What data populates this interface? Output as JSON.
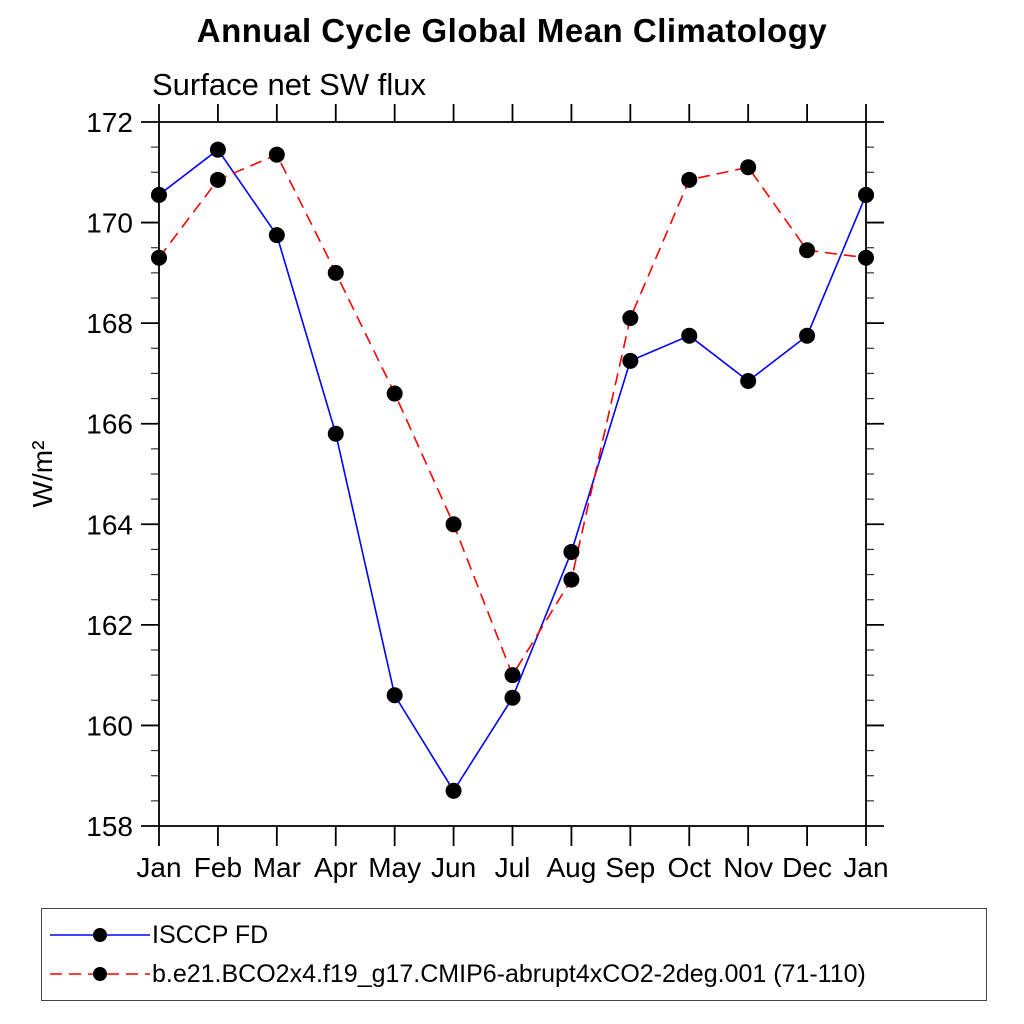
{
  "title": "Annual Cycle Global Mean Climatology",
  "subtitle": "Surface net SW flux",
  "chart_data": {
    "type": "line",
    "categories": [
      "Jan",
      "Feb",
      "Mar",
      "Apr",
      "May",
      "Jun",
      "Jul",
      "Aug",
      "Sep",
      "Oct",
      "Nov",
      "Dec",
      "Jan"
    ],
    "xlabel": "",
    "ylabel": "W/m²",
    "ylim": [
      158,
      172
    ],
    "y_major_step": 2,
    "y_minor_step": 0.5,
    "y_tick_labels": [
      "158",
      "160",
      "162",
      "164",
      "166",
      "168",
      "170",
      "172"
    ],
    "grid": false,
    "legend_position": "bottom",
    "frame_color": "#000000",
    "marker_color": "#000000",
    "series": [
      {
        "name": "ISCCP FD",
        "color": "#0000ff",
        "style": "solid",
        "marker": "circle",
        "values": [
          170.55,
          171.45,
          169.75,
          165.8,
          160.6,
          158.7,
          160.55,
          163.45,
          167.25,
          167.75,
          166.85,
          167.75,
          170.55
        ]
      },
      {
        "name": "b.e21.BCO2x4.f19_g17.CMIP6-abrupt4xCO2-2deg.001 (71-110)",
        "color": "#ff0000",
        "style": "dashed",
        "marker": "circle",
        "values": [
          169.3,
          170.85,
          171.35,
          169.0,
          166.6,
          164.0,
          161.0,
          162.9,
          168.1,
          170.85,
          171.1,
          169.45,
          169.3
        ]
      }
    ]
  }
}
